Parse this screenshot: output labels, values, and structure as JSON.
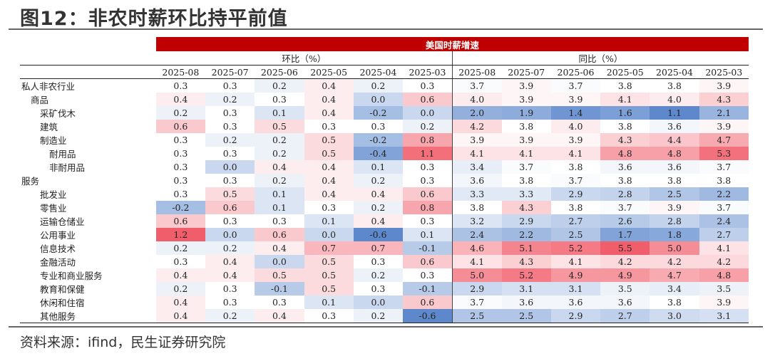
{
  "title": "图12：非农时薪环比持平前值",
  "source": "资料来源：ifind，民生证券研究院",
  "chart_data": {
    "type": "table",
    "banner": "美国时薪增速",
    "groups": [
      {
        "label": "环比（%）",
        "columns": [
          "2025-08",
          "2025-07",
          "2025-06",
          "2025-05",
          "2025-04",
          "2025-03"
        ]
      },
      {
        "label": "同比（%）",
        "columns": [
          "2025-08",
          "2025-07",
          "2025-06",
          "2025-05",
          "2025-04",
          "2025-03"
        ]
      }
    ],
    "rows": [
      {
        "label": "私人非农行业",
        "indent": 0,
        "mom": [
          "0.3",
          "0.3",
          "0.2",
          "0.4",
          "0.2",
          "0.3"
        ],
        "yoy": [
          "3.7",
          "3.9",
          "3.7",
          "3.8",
          "3.8",
          "3.9"
        ]
      },
      {
        "label": "商品",
        "indent": 1,
        "mom": [
          "0.4",
          "0.2",
          "0.3",
          "0.4",
          "0.0",
          "0.6"
        ],
        "yoy": [
          "4.0",
          "3.9",
          "3.9",
          "4.1",
          "4.0",
          "4.3"
        ]
      },
      {
        "label": "采矿伐木",
        "indent": 2,
        "mom": [
          "0.2",
          "0.3",
          "0.1",
          "0.4",
          "-0.2",
          "0.0"
        ],
        "yoy": [
          "2.0",
          "1.9",
          "1.4",
          "1.6",
          "1.1",
          "2.1"
        ]
      },
      {
        "label": "建筑",
        "indent": 2,
        "mom": [
          "0.6",
          "0.3",
          "0.5",
          "0.3",
          "0.3",
          "0.2"
        ],
        "yoy": [
          "4.2",
          "3.8",
          "4.0",
          "3.8",
          "3.6",
          "3.9"
        ]
      },
      {
        "label": "制造业",
        "indent": 2,
        "mom": [
          "0.3",
          "0.2",
          "0.2",
          "0.5",
          "-0.2",
          "0.8"
        ],
        "yoy": [
          "3.9",
          "3.9",
          "3.9",
          "4.3",
          "4.4",
          "4.7"
        ]
      },
      {
        "label": "耐用品",
        "indent": 3,
        "mom": [
          "0.3",
          "0.3",
          "0.2",
          "0.5",
          "-0.4",
          "1.1"
        ],
        "yoy": [
          "4.1",
          "4.1",
          "4.1",
          "4.8",
          "4.8",
          "5.3"
        ]
      },
      {
        "label": "非耐用品",
        "indent": 3,
        "mom": [
          "0.3",
          "0.0",
          "0.4",
          "0.4",
          "0.1",
          "0.3"
        ],
        "yoy": [
          "3.4",
          "3.7",
          "3.8",
          "3.6",
          "3.6",
          "3.7"
        ]
      },
      {
        "label": "服务",
        "indent": 0,
        "mom": [
          "0.3",
          "0.3",
          "0.2",
          "0.4",
          "0.2",
          "0.3"
        ],
        "yoy": [
          "3.6",
          "3.8",
          "3.7",
          "3.8",
          "3.8",
          "3.8"
        ]
      },
      {
        "label": "批发业",
        "indent": 2,
        "mom": [
          "0.3",
          "0.5",
          "0.1",
          "0.4",
          "0.4",
          "0.6"
        ],
        "yoy": [
          "3.3",
          "3.3",
          "2.9",
          "2.8",
          "2.5",
          "2.2"
        ]
      },
      {
        "label": "零售业",
        "indent": 2,
        "mom": [
          "-0.2",
          "0.6",
          "0.1",
          "0.3",
          "0.2",
          "0.8"
        ],
        "yoy": [
          "3.8",
          "4.3",
          "3.8",
          "3.7",
          "3.9",
          "3.7"
        ]
      },
      {
        "label": "运输仓储业",
        "indent": 2,
        "mom": [
          "0.6",
          "0.3",
          "0.3",
          "0.1",
          "0.4",
          "0.3"
        ],
        "yoy": [
          "3.2",
          "2.9",
          "2.7",
          "2.6",
          "2.8",
          "2.4"
        ]
      },
      {
        "label": "公用事业",
        "indent": 2,
        "mom": [
          "1.2",
          "0.0",
          "0.6",
          "0.0",
          "-0.6",
          "0.1"
        ],
        "yoy": [
          "2.4",
          "2.2",
          "2.5",
          "1.7",
          "1.8",
          "2.7"
        ]
      },
      {
        "label": "信息技术",
        "indent": 2,
        "mom": [
          "0.2",
          "0.2",
          "0.4",
          "0.7",
          "0.7",
          "-0.1"
        ],
        "yoy": [
          "4.6",
          "5.1",
          "5.2",
          "5.5",
          "5.0",
          "4.1"
        ]
      },
      {
        "label": "金融活动",
        "indent": 2,
        "mom": [
          "0.3",
          "0.4",
          "0.0",
          "0.5",
          "0.3",
          "0.6"
        ],
        "yoy": [
          "4.1",
          "4.3",
          "4.1",
          "4.2",
          "4.2",
          "4.2"
        ]
      },
      {
        "label": "专业和商业服务",
        "indent": 2,
        "mom": [
          "0.4",
          "0.4",
          "0.5",
          "0.5",
          "0.2",
          "0.3"
        ],
        "yoy": [
          "5.0",
          "5.2",
          "4.9",
          "4.9",
          "4.7",
          "4.8"
        ]
      },
      {
        "label": "教育和保健",
        "indent": 2,
        "mom": [
          "0.2",
          "0.3",
          "-0.1",
          "0.5",
          "0.3",
          "-0.1"
        ],
        "yoy": [
          "2.9",
          "3.1",
          "3.1",
          "3.5",
          "3.4",
          "3.5"
        ]
      },
      {
        "label": "休闲和住宿",
        "indent": 2,
        "mom": [
          "0.4",
          "0.3",
          "0.3",
          "0.1",
          "0.0",
          "0.6"
        ],
        "yoy": [
          "3.7",
          "3.6",
          "3.6",
          "3.6",
          "3.8",
          "3.9"
        ]
      },
      {
        "label": "其他服务",
        "indent": 2,
        "mom": [
          "0.4",
          "0.2",
          "0.4",
          "0.3",
          "0.2",
          "-0.6"
        ],
        "yoy": [
          "2.5",
          "2.5",
          "2.9",
          "2.7",
          "3.0",
          "3.1"
        ]
      }
    ],
    "heatmap": {
      "mom": {
        "min": -0.6,
        "mid": 0.3,
        "max": 1.2
      },
      "yoy": {
        "min": 1.1,
        "mid": 3.8,
        "max": 5.5
      },
      "colors": {
        "low": "#4f7fc8",
        "mid": "#ffffff",
        "high": "#f0505e",
        "banner": "#c00000"
      }
    }
  }
}
